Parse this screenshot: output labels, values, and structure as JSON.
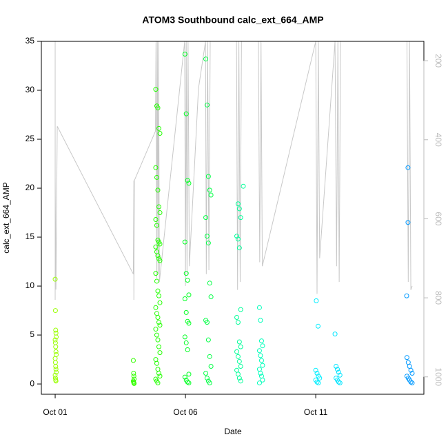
{
  "chart_data": {
    "type": "scatter",
    "title": "ATOM3 Southbound calc_ext_664_AMP",
    "xlabel": "Date",
    "ylabel": "calc_ext_664_AMP",
    "xlim": [
      -0.53,
      14.15
    ],
    "xticks": [
      {
        "value": 0,
        "label": "Oct 01"
      },
      {
        "value": 5,
        "label": "Oct 06"
      },
      {
        "value": 10,
        "label": "Oct 11"
      }
    ],
    "ylim": [
      -1.05,
      35
    ],
    "yticks": [
      0,
      5,
      10,
      15,
      20,
      25,
      30,
      35
    ],
    "y2lim": [
      1044,
      151
    ],
    "y2ticks": [
      200,
      400,
      600,
      800,
      1000
    ],
    "series": [
      {
        "color": "#99ff00",
        "x": [
          0,
          0.01,
          0.02,
          0.03,
          0.04,
          0,
          0.01,
          0.02,
          0.03,
          0.04,
          0,
          0.01,
          0.02,
          0.03,
          0.04,
          0,
          0.01,
          0.02,
          0.03
        ],
        "values": [
          10.7,
          7.5,
          5.5,
          5.2,
          4.8,
          4.5,
          4.2,
          3.8,
          3.3,
          3.0,
          2.6,
          2.2,
          1.8,
          1.5,
          1.2,
          0.9,
          0.6,
          0.4,
          0.3
        ]
      },
      {
        "color": "#33ff00",
        "x": [
          3.0,
          3.01,
          3.02,
          3.03,
          3.0,
          3.01,
          3.02,
          3.03
        ],
        "values": [
          2.4,
          1.1,
          0.8,
          0.5,
          0.3,
          0.2,
          0.1,
          0.05
        ]
      },
      {
        "color": "#22ff00",
        "x": [
          3.86,
          3.9,
          3.94,
          3.98,
          4.02,
          3.86,
          3.9,
          3.94,
          3.98,
          4.02,
          3.86,
          3.9,
          3.94,
          3.98,
          4.02,
          3.86,
          3.9,
          3.94,
          3.98,
          4.02,
          3.86,
          3.9,
          3.94,
          3.98,
          4.02,
          3.86,
          3.9,
          3.94,
          3.98,
          4.02,
          3.86,
          3.9,
          3.94,
          3.98,
          4.02,
          3.86,
          3.9,
          3.94,
          3.98,
          4.02,
          3.86,
          3.9,
          3.94
        ],
        "values": [
          30.1,
          28.4,
          28.2,
          26.1,
          25.6,
          22.1,
          21.1,
          19.8,
          18.1,
          17.5,
          16.8,
          16.2,
          14.7,
          14.5,
          14.3,
          14.0,
          13.5,
          13.1,
          12.8,
          12.6,
          11.3,
          10.5,
          9.5,
          9.0,
          8.3,
          7.8,
          7.2,
          6.8,
          6.3,
          6.0,
          5.6,
          5.0,
          4.5,
          3.8,
          3.2,
          2.5,
          2.1,
          1.5,
          1.1,
          0.8,
          0.5,
          0.3,
          0.1
        ]
      },
      {
        "color": "#00ff22",
        "x": [
          4.98,
          5.03,
          5.08,
          5.13,
          4.98,
          5.03,
          5.08,
          5.13,
          4.98,
          5.03,
          5.08,
          5.13,
          4.98,
          5.03,
          5.08,
          5.13,
          4.98,
          5.03,
          5.08,
          5.13
        ],
        "values": [
          33.7,
          27.6,
          20.8,
          20.5,
          14.5,
          11.3,
          10.6,
          9.1,
          8.7,
          7.3,
          6.4,
          6.2,
          4.8,
          4.2,
          3.5,
          1.0,
          0.7,
          0.4,
          0.2,
          0.1
        ]
      },
      {
        "color": "#00ff44",
        "x": [
          5.78,
          5.83,
          5.88,
          5.93,
          5.98,
          5.78,
          5.83,
          5.88,
          5.93,
          5.98,
          5.78,
          5.83,
          5.88,
          5.93,
          5.98,
          5.78,
          5.83,
          5.88,
          5.93
        ],
        "values": [
          33.2,
          28.5,
          21.2,
          19.8,
          19.3,
          17.0,
          15.1,
          14.4,
          10.3,
          8.9,
          6.5,
          6.3,
          4.5,
          2.8,
          1.8,
          1.1,
          0.6,
          0.3,
          0.1
        ]
      },
      {
        "color": "#00ff99",
        "x": [
          7.22,
          7.02,
          7.07,
          7.12,
          6.97,
          7.02,
          7.07,
          7.12,
          6.97,
          7.02,
          7.07,
          7.12,
          6.97,
          7.02,
          7.07,
          7.12,
          6.97,
          7.02,
          7.07,
          7.12
        ],
        "values": [
          20.2,
          18.4,
          17.9,
          17.0,
          15.1,
          14.8,
          13.9,
          7.6,
          6.8,
          6.3,
          4.3,
          3.8,
          3.3,
          2.8,
          2.3,
          1.8,
          1.4,
          1.0,
          0.6,
          0.3
        ]
      },
      {
        "color": "#00ffbb",
        "x": [
          7.84,
          7.88,
          7.92,
          7.96,
          7.84,
          7.88,
          7.92,
          7.96,
          7.84,
          7.88,
          7.92,
          7.96,
          7.84
        ],
        "values": [
          7.8,
          6.5,
          4.4,
          3.9,
          3.4,
          2.9,
          2.4,
          1.9,
          1.5,
          1.1,
          0.8,
          0.4,
          0.1
        ]
      },
      {
        "color": "#00eeff",
        "x": [
          10.02,
          10.09,
          10.0,
          10.05,
          10.1,
          10.15,
          10.0,
          10.05,
          10.1
        ],
        "values": [
          8.5,
          5.9,
          1.4,
          1.1,
          0.8,
          0.6,
          0.4,
          0.2,
          0.1
        ]
      },
      {
        "color": "#00e5ff",
        "x": [
          10.74,
          10.78,
          10.83,
          10.88,
          10.93,
          10.78,
          10.83,
          10.88,
          10.93
        ],
        "values": [
          5.1,
          1.8,
          1.5,
          1.2,
          0.9,
          0.6,
          0.4,
          0.2,
          0.1
        ]
      },
      {
        "color": "#0099ff",
        "x": [
          13.54,
          13.54,
          13.49,
          13.5,
          13.55,
          13.6,
          13.65,
          13.7,
          13.5,
          13.55,
          13.6,
          13.65,
          13.7
        ],
        "values": [
          22.1,
          16.5,
          9.0,
          2.7,
          2.2,
          1.8,
          1.4,
          1.1,
          0.8,
          0.6,
          0.4,
          0.2,
          0.1
        ]
      },
      {
        "type": "line",
        "axis": "y2",
        "color": "#c8c8c8",
        "x": [
          0,
          0,
          0,
          0.03,
          0.08,
          3.0,
          3.02,
          3.02,
          3.04,
          3.85,
          3.87,
          3.9,
          3.92,
          3.95,
          3.97,
          4.0,
          4.97,
          5.0,
          5.03,
          5.06,
          5.1,
          5.15,
          5.5,
          5.77,
          5.8,
          5.85,
          5.9,
          5.95,
          6.96,
          7.0,
          7.05,
          7.1,
          7.15,
          7.8,
          7.85,
          7.9,
          7.95,
          10.0,
          10.05,
          10.1,
          10.15,
          10.74,
          10.8,
          10.85,
          10.9,
          10.95,
          13.5,
          13.55,
          13.6,
          13.65,
          13.7
        ],
        "values": [
          151,
          805,
          496,
          779,
          366,
          740,
          503,
          805,
          503,
          378,
          151,
          750,
          151,
          740,
          151,
          760,
          151,
          770,
          151,
          740,
          151,
          720,
          270,
          151,
          740,
          151,
          730,
          151,
          151,
          780,
          151,
          760,
          151,
          151,
          710,
          151,
          720,
          151,
          790,
          151,
          700,
          151,
          720,
          151,
          760,
          151,
          151,
          760,
          151,
          780,
          770
        ]
      }
    ]
  }
}
